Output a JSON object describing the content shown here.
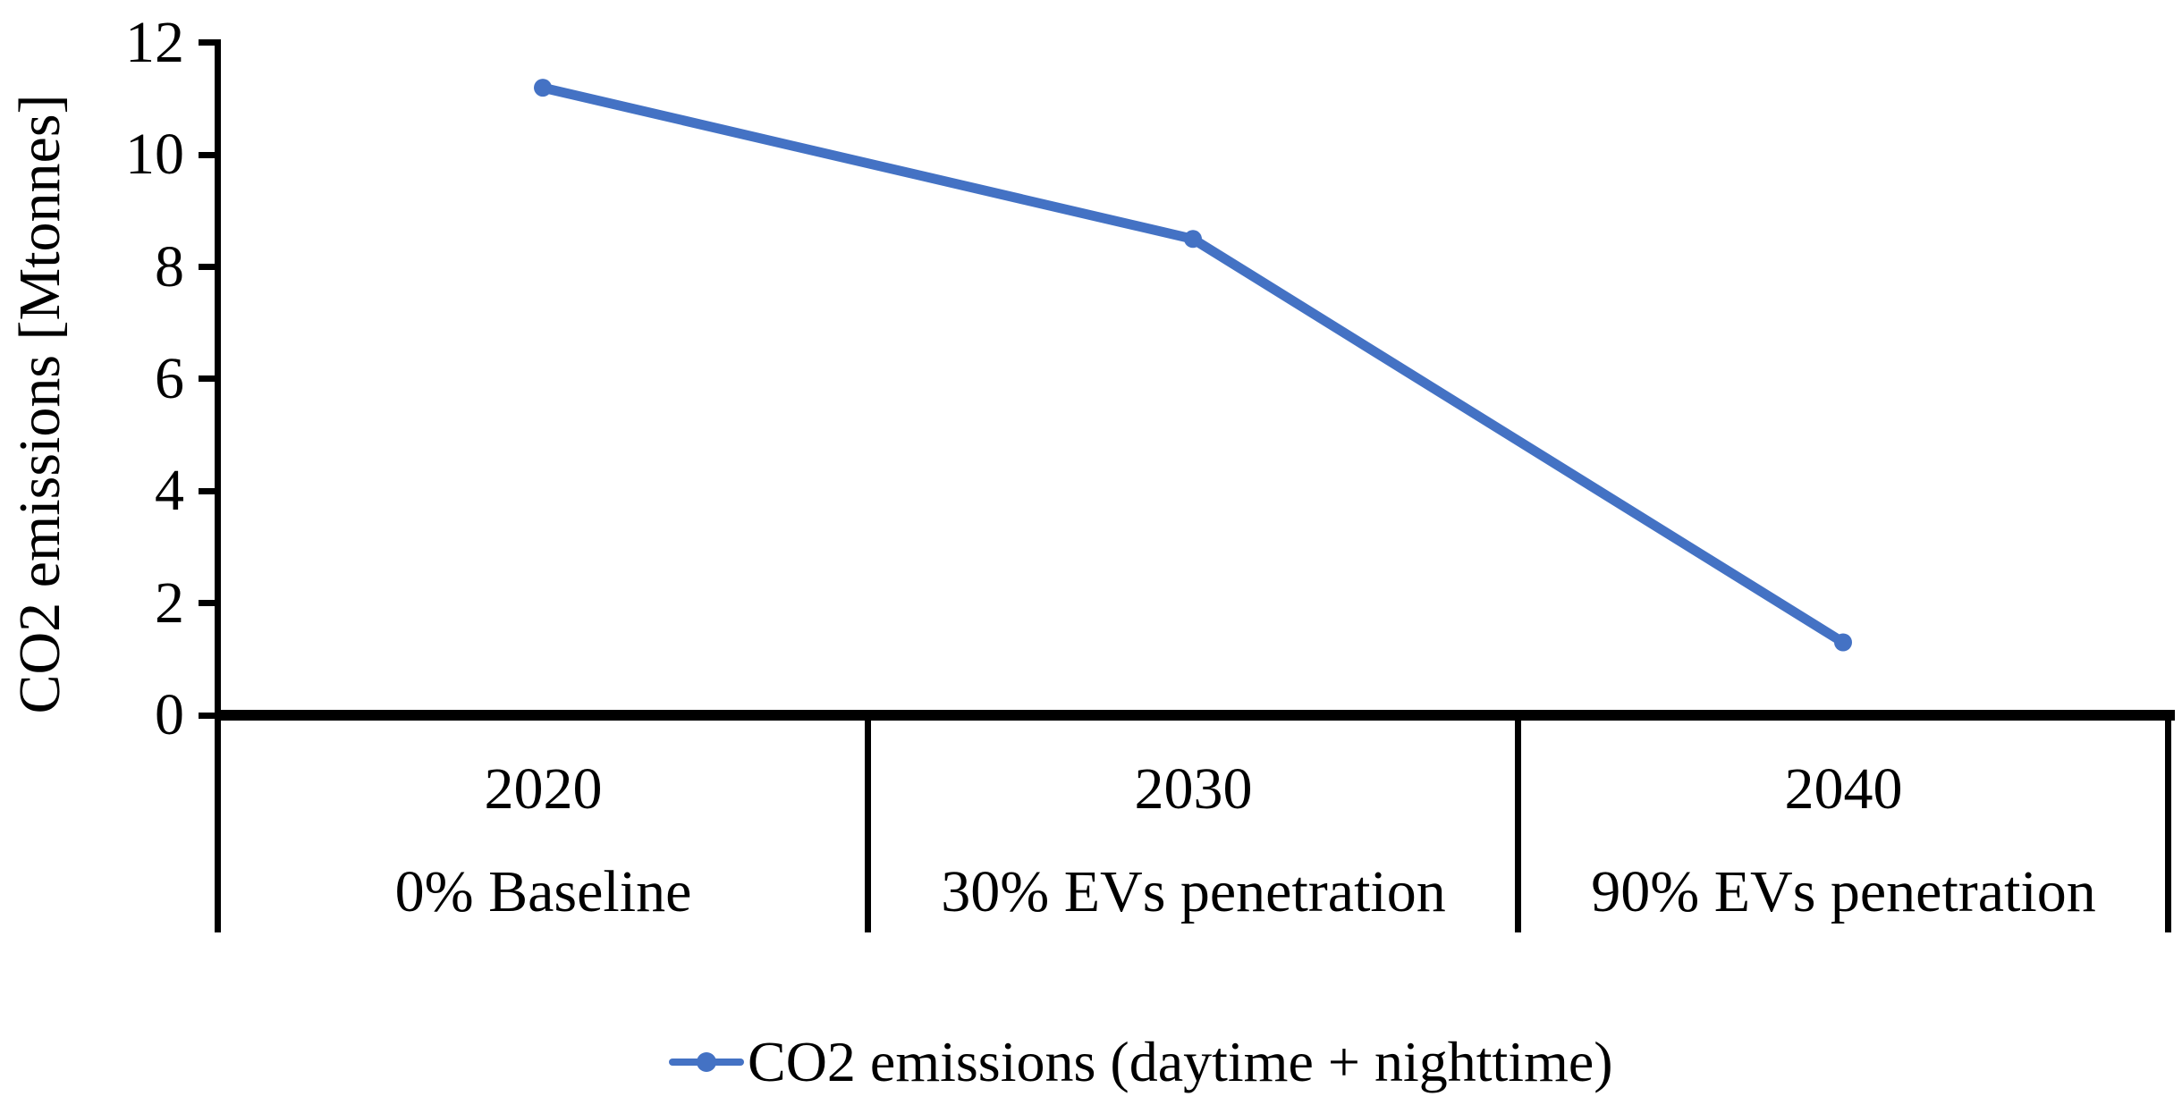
{
  "chart_data": {
    "type": "line",
    "title": "",
    "xlabel": "",
    "ylabel": "CO2 emissions [Mtonnes]",
    "categories": [
      "2020",
      "2030",
      "2040"
    ],
    "category_sublabels": [
      "0% Baseline",
      "30% EVs penetration",
      "90% EVs penetration"
    ],
    "series": [
      {
        "name": "CO2 emissions (daytime + nighttime)",
        "values": [
          11.2,
          8.5,
          1.3
        ],
        "color": "#4472C4",
        "marker": "circle"
      }
    ],
    "ylim": [
      0,
      12
    ],
    "yticks": [
      12,
      10,
      8,
      6,
      4,
      2,
      0
    ],
    "grid": false,
    "legend_position": "bottom"
  },
  "y_axis": {
    "label": "CO2 emissions [Mtonnes]",
    "tick_labels": [
      "12",
      "10",
      "8",
      "6",
      "4",
      "2",
      "0"
    ]
  },
  "x_axis": {
    "years": [
      "2020",
      "2030",
      "2040"
    ],
    "scenarios": [
      "0% Baseline",
      "30% EVs penetration",
      "90% EVs penetration"
    ]
  },
  "legend": {
    "label": "CO2 emissions (daytime + nighttime)",
    "marker_color": "#4472C4"
  },
  "colors": {
    "series_blue": "#4472C4",
    "axis_black": "#000000",
    "background": "#FFFFFF"
  }
}
